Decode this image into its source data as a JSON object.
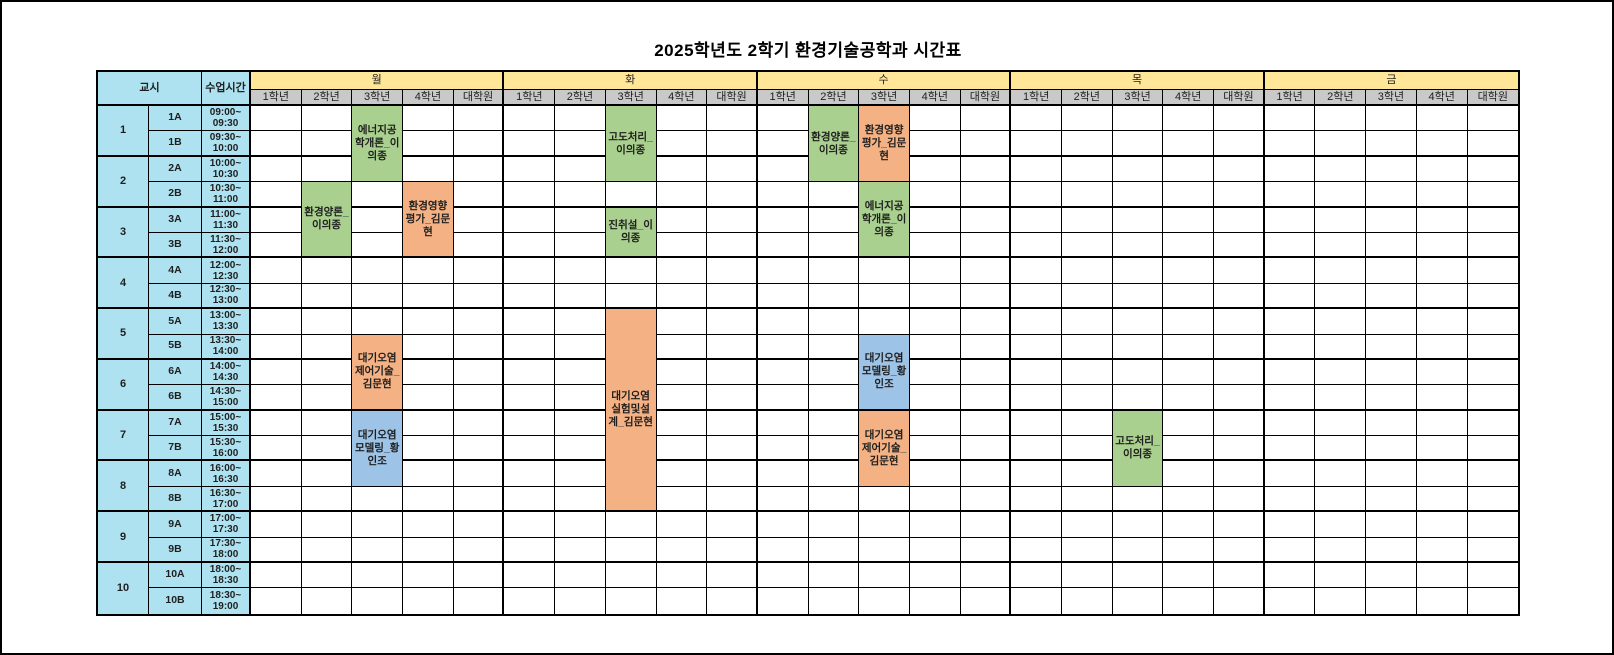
{
  "title": "2025학년도 2학기 환경기술공학과 시간표",
  "colors": {
    "time_column_bg": "#AEE2F0",
    "day_header_bg": "#FFE699",
    "year_header_bg": "#C9C9C9",
    "course_green": "#A9D08E",
    "course_orange": "#F4B183",
    "course_blue": "#9DC3E6",
    "grid_line": "#000000"
  },
  "header": {
    "period_label": "교시",
    "time_label": "수업시간",
    "days": [
      "월",
      "화",
      "수",
      "목",
      "금"
    ],
    "years": [
      "1학년",
      "2학년",
      "3학년",
      "4학년",
      "대학원"
    ]
  },
  "periods": [
    {
      "no": "1",
      "slots": [
        {
          "id": "1A",
          "t1": "09:00~",
          "t2": "09:30"
        },
        {
          "id": "1B",
          "t1": "09:30~",
          "t2": "10:00"
        }
      ]
    },
    {
      "no": "2",
      "slots": [
        {
          "id": "2A",
          "t1": "10:00~",
          "t2": "10:30"
        },
        {
          "id": "2B",
          "t1": "10:30~",
          "t2": "11:00"
        }
      ]
    },
    {
      "no": "3",
      "slots": [
        {
          "id": "3A",
          "t1": "11:00~",
          "t2": "11:30"
        },
        {
          "id": "3B",
          "t1": "11:30~",
          "t2": "12:00"
        }
      ]
    },
    {
      "no": "4",
      "slots": [
        {
          "id": "4A",
          "t1": "12:00~",
          "t2": "12:30"
        },
        {
          "id": "4B",
          "t1": "12:30~",
          "t2": "13:00"
        }
      ]
    },
    {
      "no": "5",
      "slots": [
        {
          "id": "5A",
          "t1": "13:00~",
          "t2": "13:30"
        },
        {
          "id": "5B",
          "t1": "13:30~",
          "t2": "14:00"
        }
      ]
    },
    {
      "no": "6",
      "slots": [
        {
          "id": "6A",
          "t1": "14:00~",
          "t2": "14:30"
        },
        {
          "id": "6B",
          "t1": "14:30~",
          "t2": "15:00"
        }
      ]
    },
    {
      "no": "7",
      "slots": [
        {
          "id": "7A",
          "t1": "15:00~",
          "t2": "15:30"
        },
        {
          "id": "7B",
          "t1": "15:30~",
          "t2": "16:00"
        }
      ]
    },
    {
      "no": "8",
      "slots": [
        {
          "id": "8A",
          "t1": "16:00~",
          "t2": "16:30"
        },
        {
          "id": "8B",
          "t1": "16:30~",
          "t2": "17:00"
        }
      ]
    },
    {
      "no": "9",
      "slots": [
        {
          "id": "9A",
          "t1": "17:00~",
          "t2": "17:30"
        },
        {
          "id": "9B",
          "t1": "17:30~",
          "t2": "18:00"
        }
      ]
    },
    {
      "no": "10",
      "slots": [
        {
          "id": "10A",
          "t1": "18:00~",
          "t2": "18:30"
        },
        {
          "id": "10B",
          "t1": "18:30~",
          "t2": "19:00"
        }
      ]
    }
  ],
  "courses": [
    {
      "day": "월",
      "year": "3학년",
      "label": "에너지공학개론_이의종",
      "color": "green",
      "start": "1A",
      "end": "2A"
    },
    {
      "day": "월",
      "year": "2학년",
      "label": "환경양론_이의종",
      "color": "green",
      "start": "2B",
      "end": "3B"
    },
    {
      "day": "월",
      "year": "4학년",
      "label": "환경영향평가_김문현",
      "color": "orange",
      "start": "2B",
      "end": "3B"
    },
    {
      "day": "월",
      "year": "3학년",
      "label": "대기오염제어기술_김문현",
      "color": "orange",
      "start": "5B",
      "end": "6B"
    },
    {
      "day": "월",
      "year": "3학년",
      "label": "대기오염모델링_황인조",
      "color": "blue",
      "start": "7A",
      "end": "8A"
    },
    {
      "day": "화",
      "year": "3학년",
      "label": "고도처리_이의종",
      "color": "green",
      "start": "1A",
      "end": "2A"
    },
    {
      "day": "화",
      "year": "3학년",
      "label": "진취설_이의종",
      "color": "green",
      "start": "3A",
      "end": "3B"
    },
    {
      "day": "화",
      "year": "3학년",
      "label": "대기오염실험및설계_김문현",
      "color": "orange",
      "start": "5A",
      "end": "8B"
    },
    {
      "day": "수",
      "year": "2학년",
      "label": "환경양론_이의종",
      "color": "green",
      "start": "1A",
      "end": "2A"
    },
    {
      "day": "수",
      "year": "3학년",
      "label": "환경영향평가_김문현",
      "color": "orange",
      "start": "1A",
      "end": "2A"
    },
    {
      "day": "수",
      "year": "3학년",
      "label": "에너지공학개론_이의종",
      "color": "green",
      "start": "2B",
      "end": "3B"
    },
    {
      "day": "수",
      "year": "3학년",
      "label": "대기오염모델링_황인조",
      "color": "blue",
      "start": "5B",
      "end": "6B"
    },
    {
      "day": "수",
      "year": "3학년",
      "label": "대기오염제어기술_김문현",
      "color": "orange",
      "start": "7A",
      "end": "8A"
    },
    {
      "day": "목",
      "year": "3학년",
      "label": "고도처리_이의종",
      "color": "green",
      "start": "7A",
      "end": "8A"
    }
  ]
}
